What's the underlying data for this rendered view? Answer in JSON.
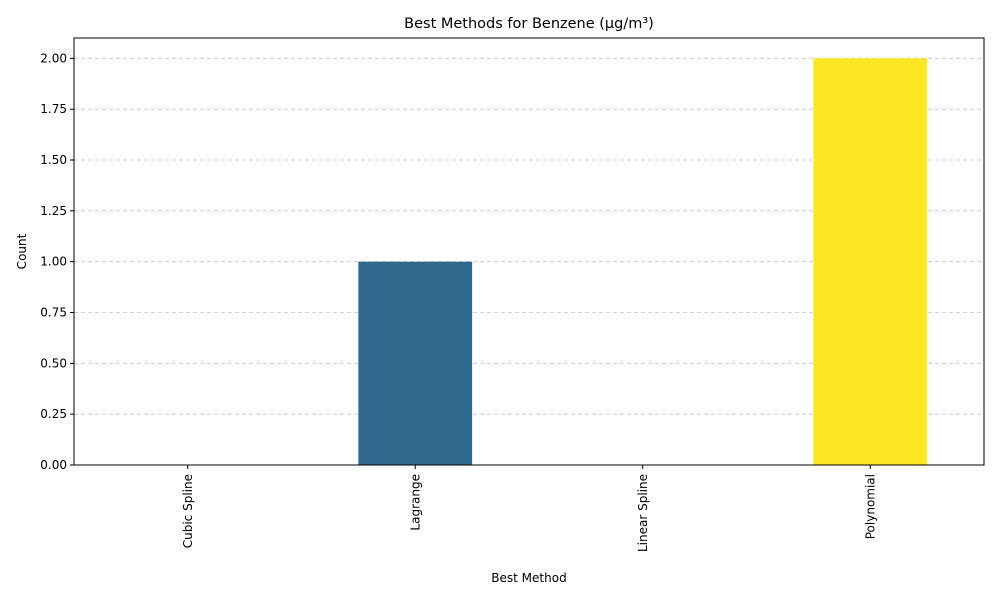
{
  "chart_data": {
    "type": "bar",
    "title": "Best Methods for Benzene (µg/m³)",
    "xlabel": "Best Method",
    "ylabel": "Count",
    "categories": [
      "Cubic Spline",
      "Lagrange",
      "Linear Spline",
      "Polynomial"
    ],
    "values": [
      0,
      1,
      0,
      2
    ],
    "colors": [
      "#440154",
      "#31688e",
      "#35b779",
      "#fde725"
    ],
    "ylim": [
      0,
      2.1
    ],
    "yticks": [
      "0.00",
      "0.25",
      "0.50",
      "0.75",
      "1.00",
      "1.25",
      "1.50",
      "1.75",
      "2.00"
    ],
    "grid": "y, dashed",
    "legend": "none"
  }
}
